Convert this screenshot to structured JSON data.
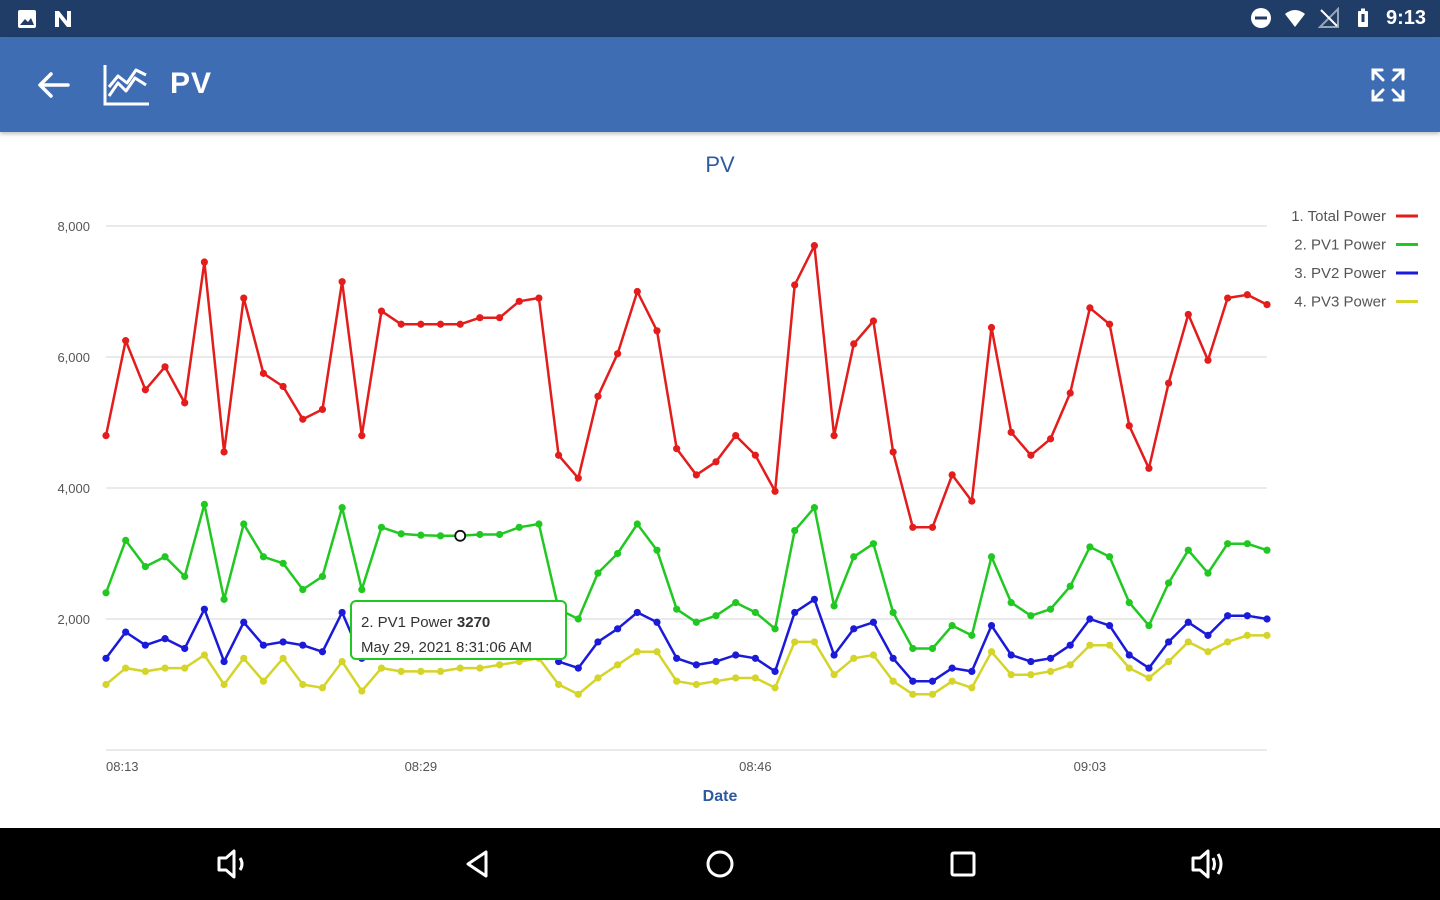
{
  "status_bar": {
    "time": "9:13",
    "icons": [
      "image-icon",
      "n-app-icon",
      "do-not-disturb-icon",
      "wifi-icon",
      "no-signal-icon",
      "battery-icon"
    ]
  },
  "app_bar": {
    "title": "PV",
    "icons": [
      "back-arrow-icon",
      "line-chart-icon",
      "fullscreen-icon"
    ],
    "background": "#3e6db4"
  },
  "tooltip": {
    "series": "2. PV1 Power",
    "value": "3270",
    "datetime": "May 29, 2021 8:31:06 AM",
    "border_color": "#22c822"
  },
  "nav_bar": {
    "icons": [
      "volume-down-icon",
      "back-triangle-icon",
      "home-circle-icon",
      "recents-square-icon",
      "volume-up-icon"
    ]
  },
  "chart_data": {
    "type": "line",
    "title": "PV",
    "xlabel": "Date",
    "ylabel": "",
    "x_tick_labels": [
      "08:13",
      "08:29",
      "08:46",
      "09:03"
    ],
    "y_tick_labels": [
      "2,000",
      "4,000",
      "6,000",
      "8,000"
    ],
    "ylim": [
      0,
      8000
    ],
    "grid": true,
    "legend_position": "top-right",
    "x": [
      "08:13",
      "08:14",
      "08:15",
      "08:16",
      "08:17",
      "08:18",
      "08:19",
      "08:20",
      "08:21",
      "08:22",
      "08:23",
      "08:24",
      "08:25",
      "08:26",
      "08:27",
      "08:28",
      "08:29",
      "08:30",
      "08:31",
      "08:32",
      "08:33",
      "08:34",
      "08:35",
      "08:36",
      "08:37",
      "08:38",
      "08:39",
      "08:40",
      "08:41",
      "08:42",
      "08:43",
      "08:44",
      "08:45",
      "08:46",
      "08:47",
      "08:48",
      "08:49",
      "08:50",
      "08:51",
      "08:52",
      "08:53",
      "08:54",
      "08:55",
      "08:56",
      "08:57",
      "08:58",
      "08:59",
      "09:00",
      "09:01",
      "09:02",
      "09:03",
      "09:04",
      "09:05",
      "09:06",
      "09:07",
      "09:08",
      "09:09",
      "09:10",
      "09:11",
      "09:12"
    ],
    "series": [
      {
        "name": "1. Total Power",
        "color": "#e31c1c",
        "values": [
          4800,
          6250,
          5500,
          5850,
          5300,
          7450,
          4550,
          6900,
          5750,
          5550,
          5050,
          5200,
          7150,
          4800,
          6700,
          6500,
          6500,
          6500,
          6500,
          6600,
          6600,
          6850,
          6900,
          4500,
          4150,
          5400,
          6050,
          7000,
          6400,
          4600,
          4200,
          4400,
          4800,
          4500,
          3950,
          7100,
          7700,
          4800,
          6200,
          6550,
          4550,
          3400,
          3400,
          4200,
          3800,
          6450,
          4850,
          4500,
          4750,
          5450,
          6750,
          6500,
          4950,
          4300,
          5600,
          6650,
          5950,
          6900,
          6950,
          6800
        ]
      },
      {
        "name": "2. PV1 Power",
        "color": "#22c822",
        "values": [
          2400,
          3200,
          2800,
          2950,
          2650,
          3750,
          2300,
          3450,
          2950,
          2850,
          2450,
          2650,
          3700,
          2450,
          3400,
          3300,
          3280,
          3270,
          3270,
          3290,
          3290,
          3400,
          3450,
          2150,
          2000,
          2700,
          3000,
          3450,
          3050,
          2150,
          1950,
          2050,
          2250,
          2100,
          1850,
          3350,
          3700,
          2200,
          2950,
          3150,
          2100,
          1550,
          1550,
          1900,
          1750,
          2950,
          2250,
          2050,
          2150,
          2500,
          3100,
          2950,
          2250,
          1900,
          2550,
          3050,
          2700,
          3150,
          3150,
          3050
        ]
      },
      {
        "name": "3. PV2 Power",
        "color": "#1a1ad8",
        "values": [
          1400,
          1800,
          1600,
          1700,
          1550,
          2150,
          1350,
          1950,
          1600,
          1650,
          1600,
          1500,
          2100,
          1400,
          2000,
          1950,
          1950,
          1950,
          1950,
          1950,
          1950,
          2050,
          2100,
          1350,
          1250,
          1650,
          1850,
          2100,
          1950,
          1400,
          1300,
          1350,
          1450,
          1400,
          1200,
          2100,
          2300,
          1450,
          1850,
          1950,
          1400,
          1050,
          1050,
          1250,
          1200,
          1900,
          1450,
          1350,
          1400,
          1600,
          2000,
          1900,
          1450,
          1250,
          1650,
          1950,
          1750,
          2050,
          2050,
          2000
        ]
      },
      {
        "name": "4. PV3 Power",
        "color": "#d4d42a",
        "values": [
          1000,
          1250,
          1200,
          1250,
          1250,
          1450,
          1000,
          1400,
          1050,
          1400,
          1000,
          950,
          1350,
          900,
          1250,
          1200,
          1200,
          1200,
          1250,
          1250,
          1300,
          1350,
          1400,
          1000,
          850,
          1100,
          1300,
          1500,
          1500,
          1050,
          1000,
          1050,
          1100,
          1100,
          950,
          1650,
          1650,
          1150,
          1400,
          1450,
          1050,
          850,
          850,
          1050,
          950,
          1500,
          1150,
          1150,
          1200,
          1300,
          1600,
          1600,
          1250,
          1100,
          1350,
          1650,
          1500,
          1650,
          1750,
          1750
        ]
      }
    ]
  }
}
